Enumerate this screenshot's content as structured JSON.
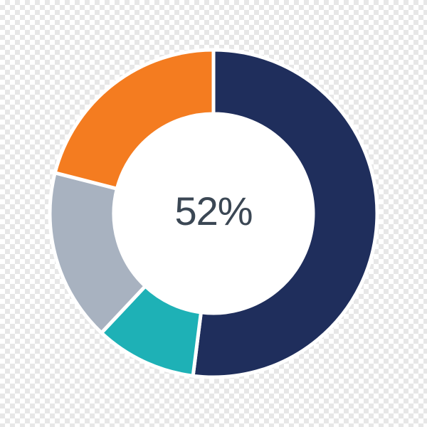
{
  "chart_data": {
    "type": "pie",
    "variant": "donut",
    "title": "",
    "center_label": "52%",
    "center_label_color": "#3b4754",
    "start_angle_deg": 0,
    "direction": "clockwise",
    "inner_radius_ratio": 0.61,
    "separator_color": "#ffffff",
    "hole_color": "#ffffff",
    "legend": "none",
    "slices": [
      {
        "name": "navy",
        "value": 52,
        "color": "#1f2e5c"
      },
      {
        "name": "teal",
        "value": 10,
        "color": "#1eb1b6"
      },
      {
        "name": "gray",
        "value": 17,
        "color": "#a8b2c0"
      },
      {
        "name": "orange",
        "value": 21,
        "color": "#f47c20"
      }
    ]
  }
}
